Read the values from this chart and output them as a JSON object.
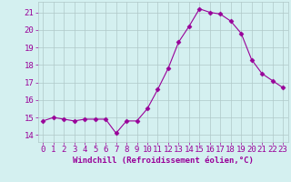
{
  "x": [
    0,
    1,
    2,
    3,
    4,
    5,
    6,
    7,
    8,
    9,
    10,
    11,
    12,
    13,
    14,
    15,
    16,
    17,
    18,
    19,
    20,
    21,
    22,
    23
  ],
  "y": [
    14.8,
    15.0,
    14.9,
    14.8,
    14.9,
    14.9,
    14.9,
    14.1,
    14.8,
    14.8,
    15.5,
    16.6,
    17.8,
    19.3,
    20.2,
    21.2,
    21.0,
    20.9,
    20.5,
    19.8,
    18.3,
    17.5,
    17.1,
    16.7
  ],
  "line_color": "#990099",
  "marker": "D",
  "marker_size": 2.5,
  "bg_color": "#d4f0f0",
  "grid_color": "#b0c8c8",
  "xlabel": "Windchill (Refroidissement éolien,°C)",
  "ylabel_ticks": [
    14,
    15,
    16,
    17,
    18,
    19,
    20,
    21
  ],
  "xlim": [
    -0.5,
    23.5
  ],
  "ylim": [
    13.6,
    21.6
  ],
  "tick_color": "#990099",
  "label_color": "#990099",
  "font_size": 6.5,
  "xlabel_font_size": 6.5
}
